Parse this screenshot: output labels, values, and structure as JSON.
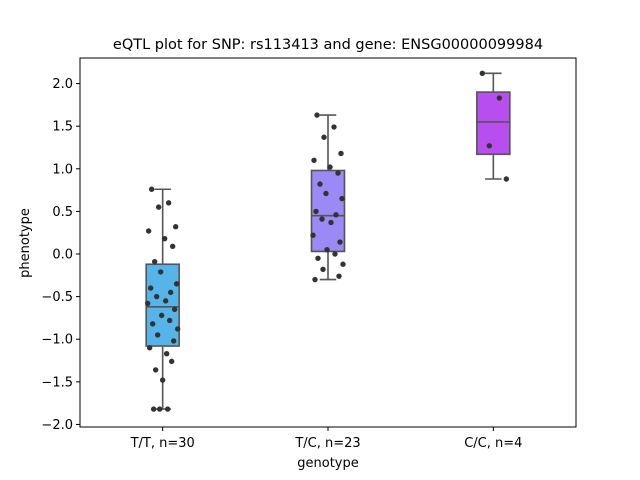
{
  "chart_data": {
    "type": "box",
    "title": "eQTL plot for SNP: rs113413 and gene: ENSG00000099984",
    "xlabel": "genotype",
    "ylabel": "phenotype",
    "ylim": [
      -2.03,
      2.3
    ],
    "yticks": [
      -2.0,
      -1.5,
      -1.0,
      -0.5,
      0.0,
      0.5,
      1.0,
      1.5,
      2.0
    ],
    "ytick_labels": [
      "−2.0",
      "−1.5",
      "−1.0",
      "−0.5",
      "0.0",
      "0.5",
      "1.0",
      "1.5",
      "2.0"
    ],
    "grid": false,
    "legend": "none",
    "categories": [
      "T/T, n=30",
      "T/C, n=23",
      "C/C, n=4"
    ],
    "groups": [
      {
        "color": "#56b4e9",
        "whisker_low": -1.82,
        "q1": -1.08,
        "median": -0.62,
        "q3": -0.12,
        "whisker_high": 0.76,
        "points": [
          0.76,
          0.6,
          0.55,
          0.32,
          0.27,
          0.18,
          0.09,
          -0.09,
          -0.21,
          -0.35,
          -0.4,
          -0.45,
          -0.5,
          -0.55,
          -0.58,
          -0.65,
          -0.72,
          -0.78,
          -0.82,
          -0.88,
          -0.95,
          -1.02,
          -1.1,
          -1.17,
          -1.26,
          -1.36,
          -1.48,
          -1.82,
          -1.82,
          -1.82
        ]
      },
      {
        "color": "#9b8af5",
        "whisker_low": -0.3,
        "q1": 0.03,
        "median": 0.45,
        "q3": 0.98,
        "whisker_high": 1.63,
        "points": [
          1.63,
          1.49,
          1.37,
          1.18,
          1.1,
          1.02,
          0.95,
          0.82,
          0.71,
          0.65,
          0.5,
          0.46,
          0.41,
          0.37,
          0.22,
          0.14,
          0.05,
          0.0,
          -0.05,
          -0.12,
          -0.18,
          -0.26,
          -0.3
        ]
      },
      {
        "color": "#b84ef0",
        "whisker_low": 0.88,
        "q1": 1.17,
        "median": 1.55,
        "q3": 1.9,
        "whisker_high": 2.12,
        "points": [
          2.12,
          1.83,
          1.27,
          0.88
        ]
      }
    ]
  }
}
